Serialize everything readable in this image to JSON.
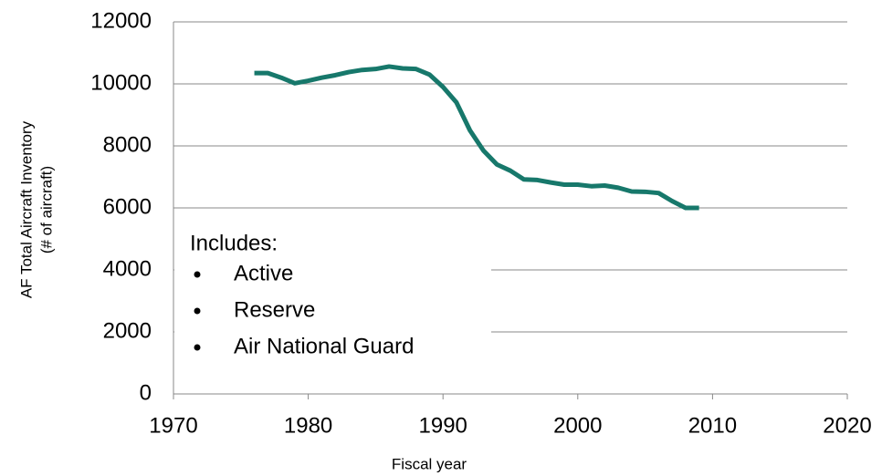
{
  "chart_data": {
    "type": "line",
    "x": [
      1976,
      1977,
      1978,
      1979,
      1980,
      1981,
      1982,
      1983,
      1984,
      1985,
      1986,
      1987,
      1988,
      1989,
      1990,
      1991,
      1992,
      1993,
      1994,
      1995,
      1996,
      1997,
      1998,
      1999,
      2000,
      2001,
      2002,
      2003,
      2004,
      2005,
      2006,
      2007,
      2008,
      2009
    ],
    "series": [
      {
        "name": "AF Total Aircraft Inventory",
        "color": "#17786b",
        "values": [
          10350,
          10350,
          10200,
          10020,
          10100,
          10200,
          10280,
          10380,
          10450,
          10480,
          10560,
          10500,
          10480,
          10300,
          9900,
          9400,
          8500,
          7850,
          7400,
          7200,
          6920,
          6900,
          6820,
          6750,
          6750,
          6700,
          6720,
          6650,
          6530,
          6520,
          6480,
          6220,
          6000,
          6000
        ]
      }
    ],
    "xlim": [
      1970,
      2020
    ],
    "xticks": [
      1970,
      1980,
      1990,
      2000,
      2010,
      2020
    ],
    "ylim": [
      0,
      12000
    ],
    "yticks": [
      0,
      2000,
      4000,
      6000,
      8000,
      10000,
      12000
    ],
    "grid": true,
    "xlabel": "Fiscal year",
    "ylabel": [
      "AF Total Aircraft Inventory",
      "(# of aircraft)"
    ],
    "annotation": {
      "title": "Includes:",
      "items": [
        "Active",
        "Reserve",
        "Air National Guard"
      ]
    }
  }
}
